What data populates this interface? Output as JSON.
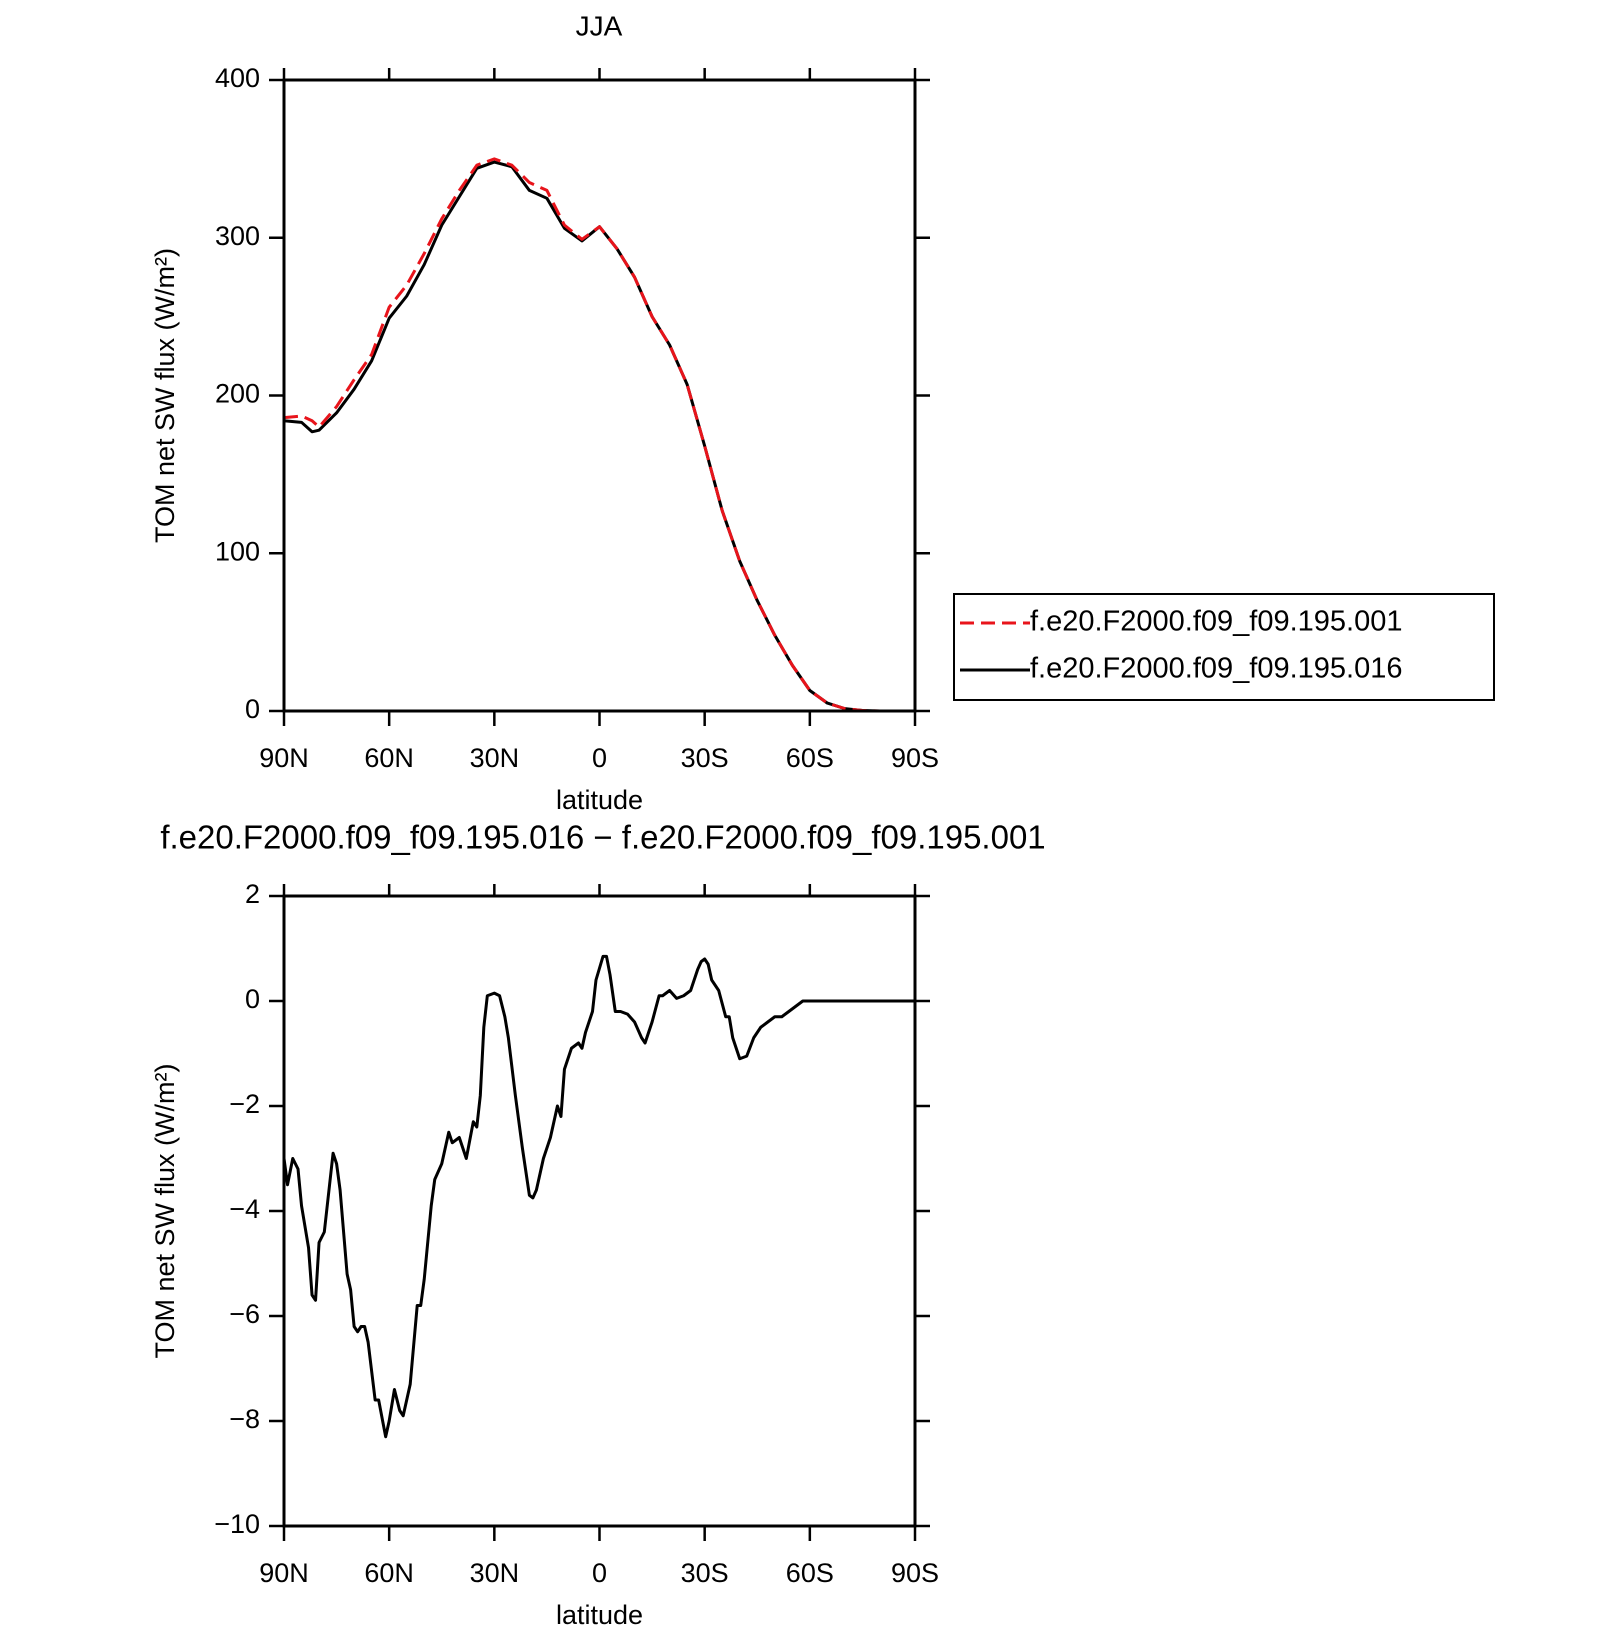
{
  "chart_data": [
    {
      "type": "line",
      "title": "JJA",
      "x_label": "latitude",
      "y_label": "TOM net SW flux (W/m²)",
      "x": [
        90,
        85,
        82,
        80,
        75,
        70,
        65,
        60,
        55,
        50,
        45,
        40,
        35,
        30,
        25,
        20,
        15,
        10,
        5,
        0,
        -5,
        -10,
        -15,
        -20,
        -25,
        -30,
        -35,
        -40,
        -45,
        -50,
        -55,
        -60,
        -65,
        -70,
        -75,
        -80,
        -85,
        -90
      ],
      "series": [
        {
          "name": "f.e20.F2000.f09_f09.195.001",
          "color": "#e8141b",
          "line_style": "dashed",
          "values": [
            186,
            187,
            184,
            180,
            193,
            210,
            226,
            256,
            270,
            290,
            312,
            330,
            346,
            350,
            346,
            335,
            330,
            308,
            299,
            307,
            293,
            275,
            250,
            232,
            207,
            168,
            127,
            95,
            70,
            48,
            29,
            13,
            5,
            1.5,
            0.3,
            0,
            0,
            0
          ]
        },
        {
          "name": "f.e20.F2000.f09_f09.195.016",
          "color": "#000000",
          "line_style": "solid",
          "values": [
            184,
            183,
            177,
            178,
            189,
            204,
            222,
            249,
            263,
            283,
            308,
            326,
            344,
            348,
            345,
            330,
            325,
            306,
            298,
            307,
            293,
            275,
            250,
            232,
            207,
            168,
            127,
            95,
            70,
            48,
            29,
            13,
            5,
            1.5,
            0.3,
            0,
            0,
            0
          ]
        }
      ],
      "xlim": [
        90,
        -90
      ],
      "xticks": [
        {
          "value": 90,
          "label": "90N"
        },
        {
          "value": 60,
          "label": "60N"
        },
        {
          "value": 30,
          "label": "30N"
        },
        0,
        {
          "value": -30,
          "label": "30S"
        },
        {
          "value": -60,
          "label": "60S"
        },
        {
          "value": -90,
          "label": "90S"
        }
      ],
      "ylim": [
        0,
        400
      ],
      "yticks": [
        0,
        100,
        200,
        300,
        400
      ],
      "legend": "outside-right"
    },
    {
      "type": "line",
      "title": "f.e20.F2000.f09_f09.195.016 − f.e20.F2000.f09_f09.195.001",
      "x_label": "latitude",
      "y_label": "TOM net SW flux (W/m²)",
      "x": [
        90,
        89,
        87.5,
        86,
        85,
        83,
        82,
        81,
        80,
        78.5,
        77,
        76,
        75,
        74,
        72,
        71,
        70,
        69,
        68,
        67,
        66,
        64,
        63,
        61,
        60,
        58.5,
        57,
        56,
        54,
        52,
        51,
        50,
        48,
        47,
        45,
        43,
        42,
        40,
        38,
        36,
        35,
        34,
        33,
        32,
        30,
        28.5,
        27,
        26,
        24,
        22,
        20,
        19,
        18,
        16,
        14,
        12,
        11,
        10,
        8,
        6,
        5,
        4,
        2,
        1,
        -1,
        -2,
        -3,
        -4.5,
        -6,
        -8,
        -10,
        -12,
        -13,
        -15,
        -17,
        -18,
        -20,
        -22,
        -24,
        -26,
        -28,
        -29,
        -30,
        -31,
        -32,
        -34,
        -36,
        -37,
        -38,
        -40,
        -42,
        -44,
        -46,
        -48,
        -50,
        -52,
        -54,
        -56,
        -58,
        -60,
        -65,
        -70,
        -90
      ],
      "values": [
        -3.0,
        -3.5,
        -3.0,
        -3.2,
        -3.9,
        -4.7,
        -5.6,
        -5.7,
        -4.6,
        -4.4,
        -3.5,
        -2.9,
        -3.1,
        -3.6,
        -5.2,
        -5.5,
        -6.2,
        -6.3,
        -6.2,
        -6.2,
        -6.5,
        -7.6,
        -7.6,
        -8.3,
        -8.0,
        -7.4,
        -7.8,
        -7.9,
        -7.3,
        -5.8,
        -5.8,
        -5.3,
        -3.9,
        -3.4,
        -3.1,
        -2.5,
        -2.7,
        -2.6,
        -3.0,
        -2.3,
        -2.4,
        -1.8,
        -0.5,
        0.1,
        0.15,
        0.1,
        -0.3,
        -0.7,
        -1.8,
        -2.8,
        -3.7,
        -3.75,
        -3.6,
        -3.0,
        -2.6,
        -2.0,
        -2.2,
        -1.3,
        -0.9,
        -0.8,
        -0.9,
        -0.6,
        -0.2,
        0.4,
        0.85,
        0.85,
        0.5,
        -0.2,
        -0.2,
        -0.25,
        -0.4,
        -0.7,
        -0.8,
        -0.4,
        0.1,
        0.1,
        0.2,
        0.05,
        0.1,
        0.2,
        0.6,
        0.75,
        0.8,
        0.7,
        0.4,
        0.2,
        -0.3,
        -0.3,
        -0.7,
        -1.1,
        -1.05,
        -0.7,
        -0.5,
        -0.4,
        -0.3,
        -0.3,
        -0.2,
        -0.1,
        0,
        0,
        0,
        0,
        0
      ],
      "color": "#000000",
      "xlim": [
        90,
        -90
      ],
      "xticks": [
        {
          "value": 90,
          "label": "90N"
        },
        {
          "value": 60,
          "label": "60N"
        },
        {
          "value": 30,
          "label": "30N"
        },
        0,
        {
          "value": -30,
          "label": "30S"
        },
        {
          "value": -60,
          "label": "60S"
        },
        {
          "value": -90,
          "label": "90S"
        }
      ],
      "ylim": [
        -10,
        2
      ],
      "yticks": [
        {
          "value": -10,
          "label": "−10"
        },
        {
          "value": -8,
          "label": "−8"
        },
        {
          "value": -6,
          "label": "−6"
        },
        {
          "value": -4,
          "label": "−4"
        },
        {
          "value": -2,
          "label": "−2"
        },
        0,
        2
      ]
    }
  ]
}
